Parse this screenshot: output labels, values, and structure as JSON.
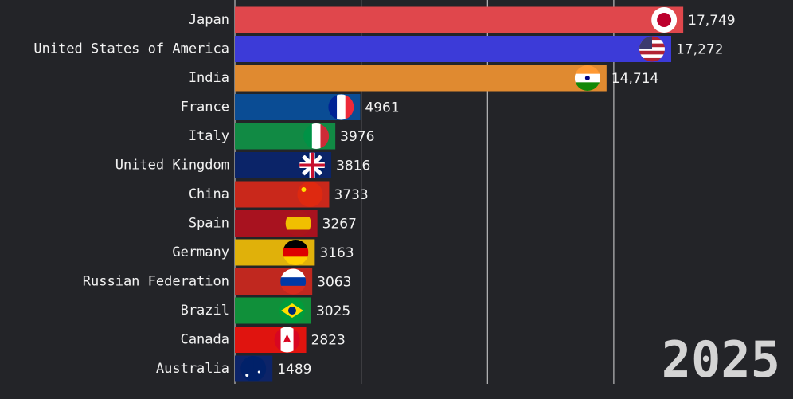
{
  "chart_data": {
    "type": "bar",
    "orientation": "horizontal",
    "categories": [
      "Japan",
      "United States of America",
      "India",
      "France",
      "Italy",
      "United Kingdom",
      "China",
      "Spain",
      "Germany",
      "Russian Federation",
      "Brazil",
      "Canada",
      "Australia"
    ],
    "values": [
      17749,
      17272,
      14714,
      4961,
      3976,
      3816,
      3733,
      3267,
      3163,
      3063,
      3025,
      2823,
      1489
    ],
    "value_labels": [
      "17,749",
      "17,272",
      "14,714",
      "4961",
      "3976",
      "3816",
      "3733",
      "3267",
      "3163",
      "3063",
      "3025",
      "2823",
      "1489"
    ],
    "colors": [
      "#e0474c",
      "#3c3bd8",
      "#e08a30",
      "#0a4c94",
      "#118a44",
      "#0b2468",
      "#c9281b",
      "#a8121f",
      "#e0b10a",
      "#c0281f",
      "#10903a",
      "#e0140f",
      "#0d2468"
    ],
    "xlim": [
      0,
      22000
    ],
    "xticks": [
      5000,
      10000,
      15000
    ],
    "grid": true,
    "year": "2025"
  }
}
